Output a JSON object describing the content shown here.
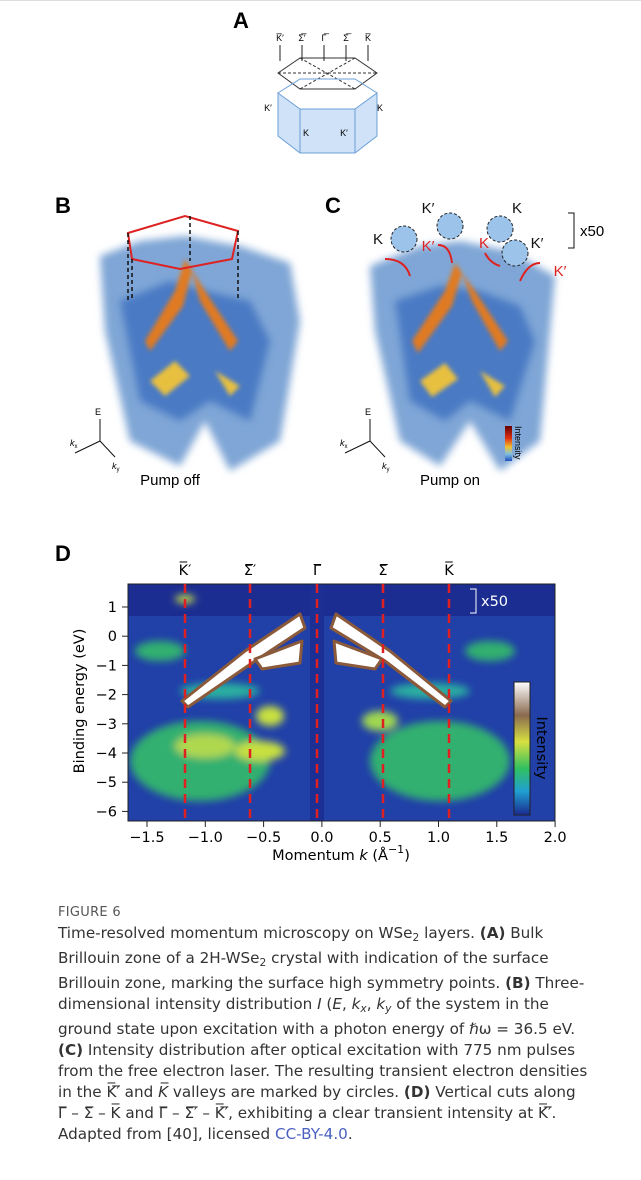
{
  "figure": {
    "panel_a": {
      "label": "A",
      "top_points": [
        "K̅′",
        "Σ̅′",
        "Γ̅",
        "Σ̅",
        "K̅"
      ],
      "side_points": [
        "K′",
        "K",
        "K",
        "K′"
      ]
    },
    "panel_b": {
      "label": "B",
      "caption": "Pump off",
      "axis_e": "E",
      "axis_kx": {
        "base": "k",
        "sub": "x"
      },
      "axis_ky": {
        "base": "k",
        "sub": "y"
      }
    },
    "panel_c": {
      "label": "C",
      "caption": "Pump on",
      "valleys": [
        "K′",
        "K",
        "K′",
        "K",
        "K",
        "K′",
        "K′"
      ],
      "scale": "x50",
      "colorbar": "Intensity",
      "axis_e": "E",
      "axis_kx": {
        "base": "k",
        "sub": "x"
      },
      "axis_ky": {
        "base": "k",
        "sub": "y"
      }
    },
    "panel_d": {
      "label": "D",
      "top_points": [
        "K̅′",
        "Σ̅′",
        "Γ̅",
        "Σ̅",
        "K̅"
      ],
      "y_ticks": [
        "1",
        "0",
        "−1",
        "−2",
        "−3",
        "−4",
        "−5",
        "−6"
      ],
      "x_ticks": [
        "−1.5",
        "−1.0",
        "−0.5",
        "0.0",
        "0.5",
        "1.0",
        "1.5",
        "2.0"
      ],
      "y_label": "Binding energy (eV)",
      "x_label": {
        "pre": "Momentum ",
        "k": "k",
        "post": " (Å",
        "sup": "−1",
        "end": ")"
      },
      "scale": "x50",
      "colorbar": "Intensity"
    }
  },
  "caption": {
    "figure_label": "FIGURE 6",
    "runs": [
      {
        "text": "Time-resolved momentum microscopy on WSe"
      },
      {
        "text": "2",
        "style": "sub"
      },
      {
        "text": " layers. "
      },
      {
        "text": "(A)",
        "style": "b"
      },
      {
        "text": " Bulk Brillouin zone of a 2H-WSe"
      },
      {
        "text": "2",
        "style": "sub"
      },
      {
        "text": " crystal with indication of the surface Brillouin zone, marking the surface high symmetry points. "
      },
      {
        "text": "(B)",
        "style": "b"
      },
      {
        "text": " Three-dimensional intensity distribution "
      },
      {
        "text": "I",
        "style": "i"
      },
      {
        "text": " ("
      },
      {
        "text": "E",
        "style": "i"
      },
      {
        "text": ", "
      },
      {
        "text": "k",
        "style": "i"
      },
      {
        "text": "x",
        "style": "isub"
      },
      {
        "text": ", "
      },
      {
        "text": "k",
        "style": "i"
      },
      {
        "text": "y",
        "style": "isub"
      },
      {
        "text": " of the system in the ground state upon excitation with a photon energy of ℏω = 36.5 eV. "
      },
      {
        "text": "(C)",
        "style": "b"
      },
      {
        "text": " Intensity distribution after optical excitation with 775 nm pulses from the free electron laser. The resulting transient electron densities in the "
      },
      {
        "text": "K̅′̅"
      },
      {
        "text": " and "
      },
      {
        "text": "K̅",
        "style": "i"
      },
      {
        "text": " valleys are marked by circles. "
      },
      {
        "text": "(D)",
        "style": "b"
      },
      {
        "text": " Vertical cuts along Γ̅ – Σ̅ – K̅ and Γ̅ – Σ̅′̅ – K̅′̅, exhibiting a clear transient intensity at K̅′̅. Adapted from [40], licensed "
      },
      {
        "text": "CC-BY-4.0",
        "style": "link"
      },
      {
        "text": "."
      }
    ]
  }
}
